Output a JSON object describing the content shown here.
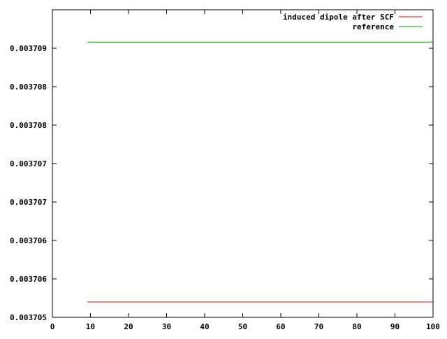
{
  "chart_data": {
    "type": "line",
    "title": "",
    "xlabel": "",
    "ylabel": "",
    "xlim": [
      0,
      100
    ],
    "ylim": [
      0.003705,
      0.003709
    ],
    "grid": false,
    "legend_position": "top-right",
    "x_ticks": [
      {
        "value": 0,
        "label": "0"
      },
      {
        "value": 10,
        "label": "10"
      },
      {
        "value": 20,
        "label": "20"
      },
      {
        "value": 30,
        "label": "30"
      },
      {
        "value": 40,
        "label": "40"
      },
      {
        "value": 50,
        "label": "50"
      },
      {
        "value": 60,
        "label": "60"
      },
      {
        "value": 70,
        "label": "70"
      },
      {
        "value": 80,
        "label": "80"
      },
      {
        "value": 90,
        "label": "90"
      },
      {
        "value": 100,
        "label": "100"
      }
    ],
    "y_ticks": [
      {
        "value": 0.003705,
        "label": "0.003705"
      },
      {
        "value": 0.0037055,
        "label": "0.003706"
      },
      {
        "value": 0.003706,
        "label": "0.003706"
      },
      {
        "value": 0.0037065,
        "label": "0.003707"
      },
      {
        "value": 0.003707,
        "label": "0.003707"
      },
      {
        "value": 0.0037075,
        "label": "0.003708"
      },
      {
        "value": 0.003708,
        "label": "0.003708"
      },
      {
        "value": 0.0037085,
        "label": "0.003709"
      }
    ],
    "series": [
      {
        "name": "induced dipole after SCF",
        "color": "#ff0000",
        "x": [
          9.2,
          100
        ],
        "y": [
          0.0037052,
          0.0037052
        ]
      },
      {
        "name": "reference",
        "color": "#00a000",
        "x": [
          9.2,
          100
        ],
        "y": [
          0.00370858,
          0.00370858
        ]
      }
    ]
  }
}
